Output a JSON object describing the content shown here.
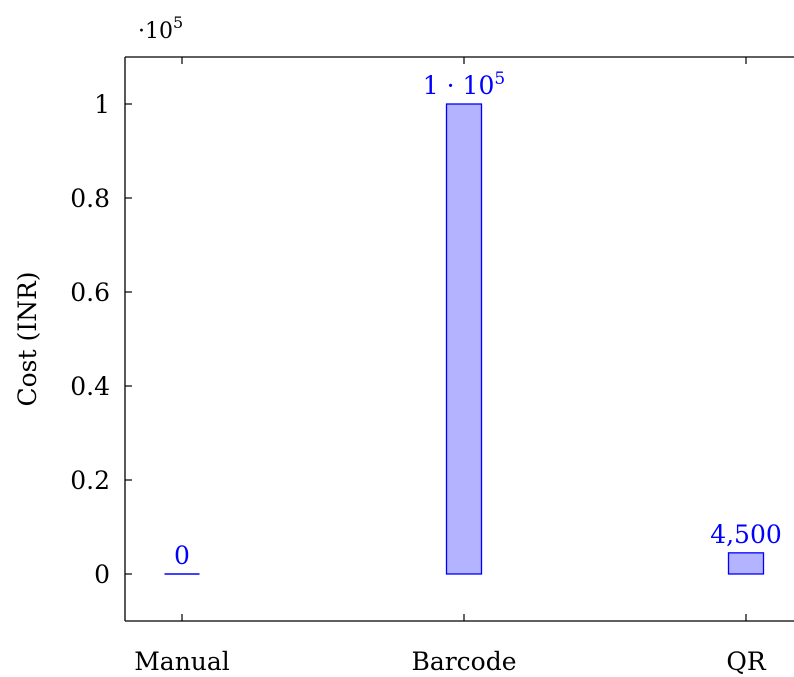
{
  "chart_data": {
    "type": "bar",
    "categories": [
      "Manual",
      "Barcode",
      "QR"
    ],
    "values": [
      0,
      100000,
      4500
    ],
    "data_labels": [
      "0",
      "1 · 10",
      "4,500"
    ],
    "data_label_superscripts": [
      "",
      "5",
      ""
    ],
    "xlabel": "",
    "ylabel": "Cost (INR)",
    "ylim": [
      -10000,
      110000
    ],
    "yticks": [
      0,
      20000,
      40000,
      60000,
      80000,
      100000
    ],
    "ytick_labels": [
      "0",
      "0.2",
      "0.4",
      "0.6",
      "0.8",
      "1"
    ],
    "y_scale_label": "·10",
    "y_scale_exponent": "5",
    "grid": false,
    "bar_fill": "#b3b3ff",
    "bar_stroke": "#0000ff"
  }
}
